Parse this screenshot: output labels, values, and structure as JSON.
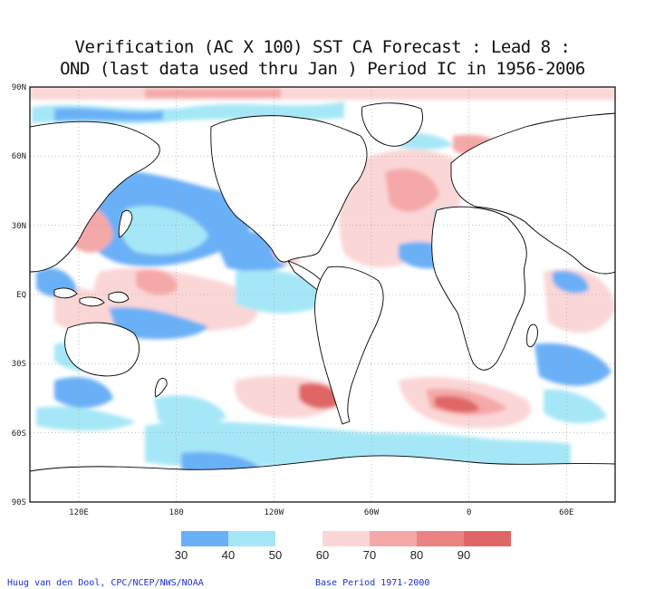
{
  "title": {
    "line1": "Verification (AC X 100) SST CA Forecast : Lead 8 :",
    "line2": "OND (last data used thru Jan ) Period IC in 1956-2006"
  },
  "axes": {
    "lat_labels": [
      "90N",
      "60N",
      "30N",
      "EQ",
      "30S",
      "60S",
      "90S"
    ],
    "lon_labels": [
      "120E",
      "180",
      "120W",
      "60W",
      "0",
      "60E"
    ]
  },
  "legend": {
    "thresholds": [
      "30",
      "40",
      "50",
      "60",
      "70",
      "80",
      "90"
    ],
    "colors": [
      "#6ab0f6",
      "#a6e7f7",
      "#ffffff",
      "#fbd6d6",
      "#f5a8a8",
      "#ea8383",
      "#e06666"
    ]
  },
  "footer": {
    "credit": "Huug van den Dool, CPC/NCEP/NWS/NOAA",
    "base_period": "Base Period 1971-2000"
  }
}
